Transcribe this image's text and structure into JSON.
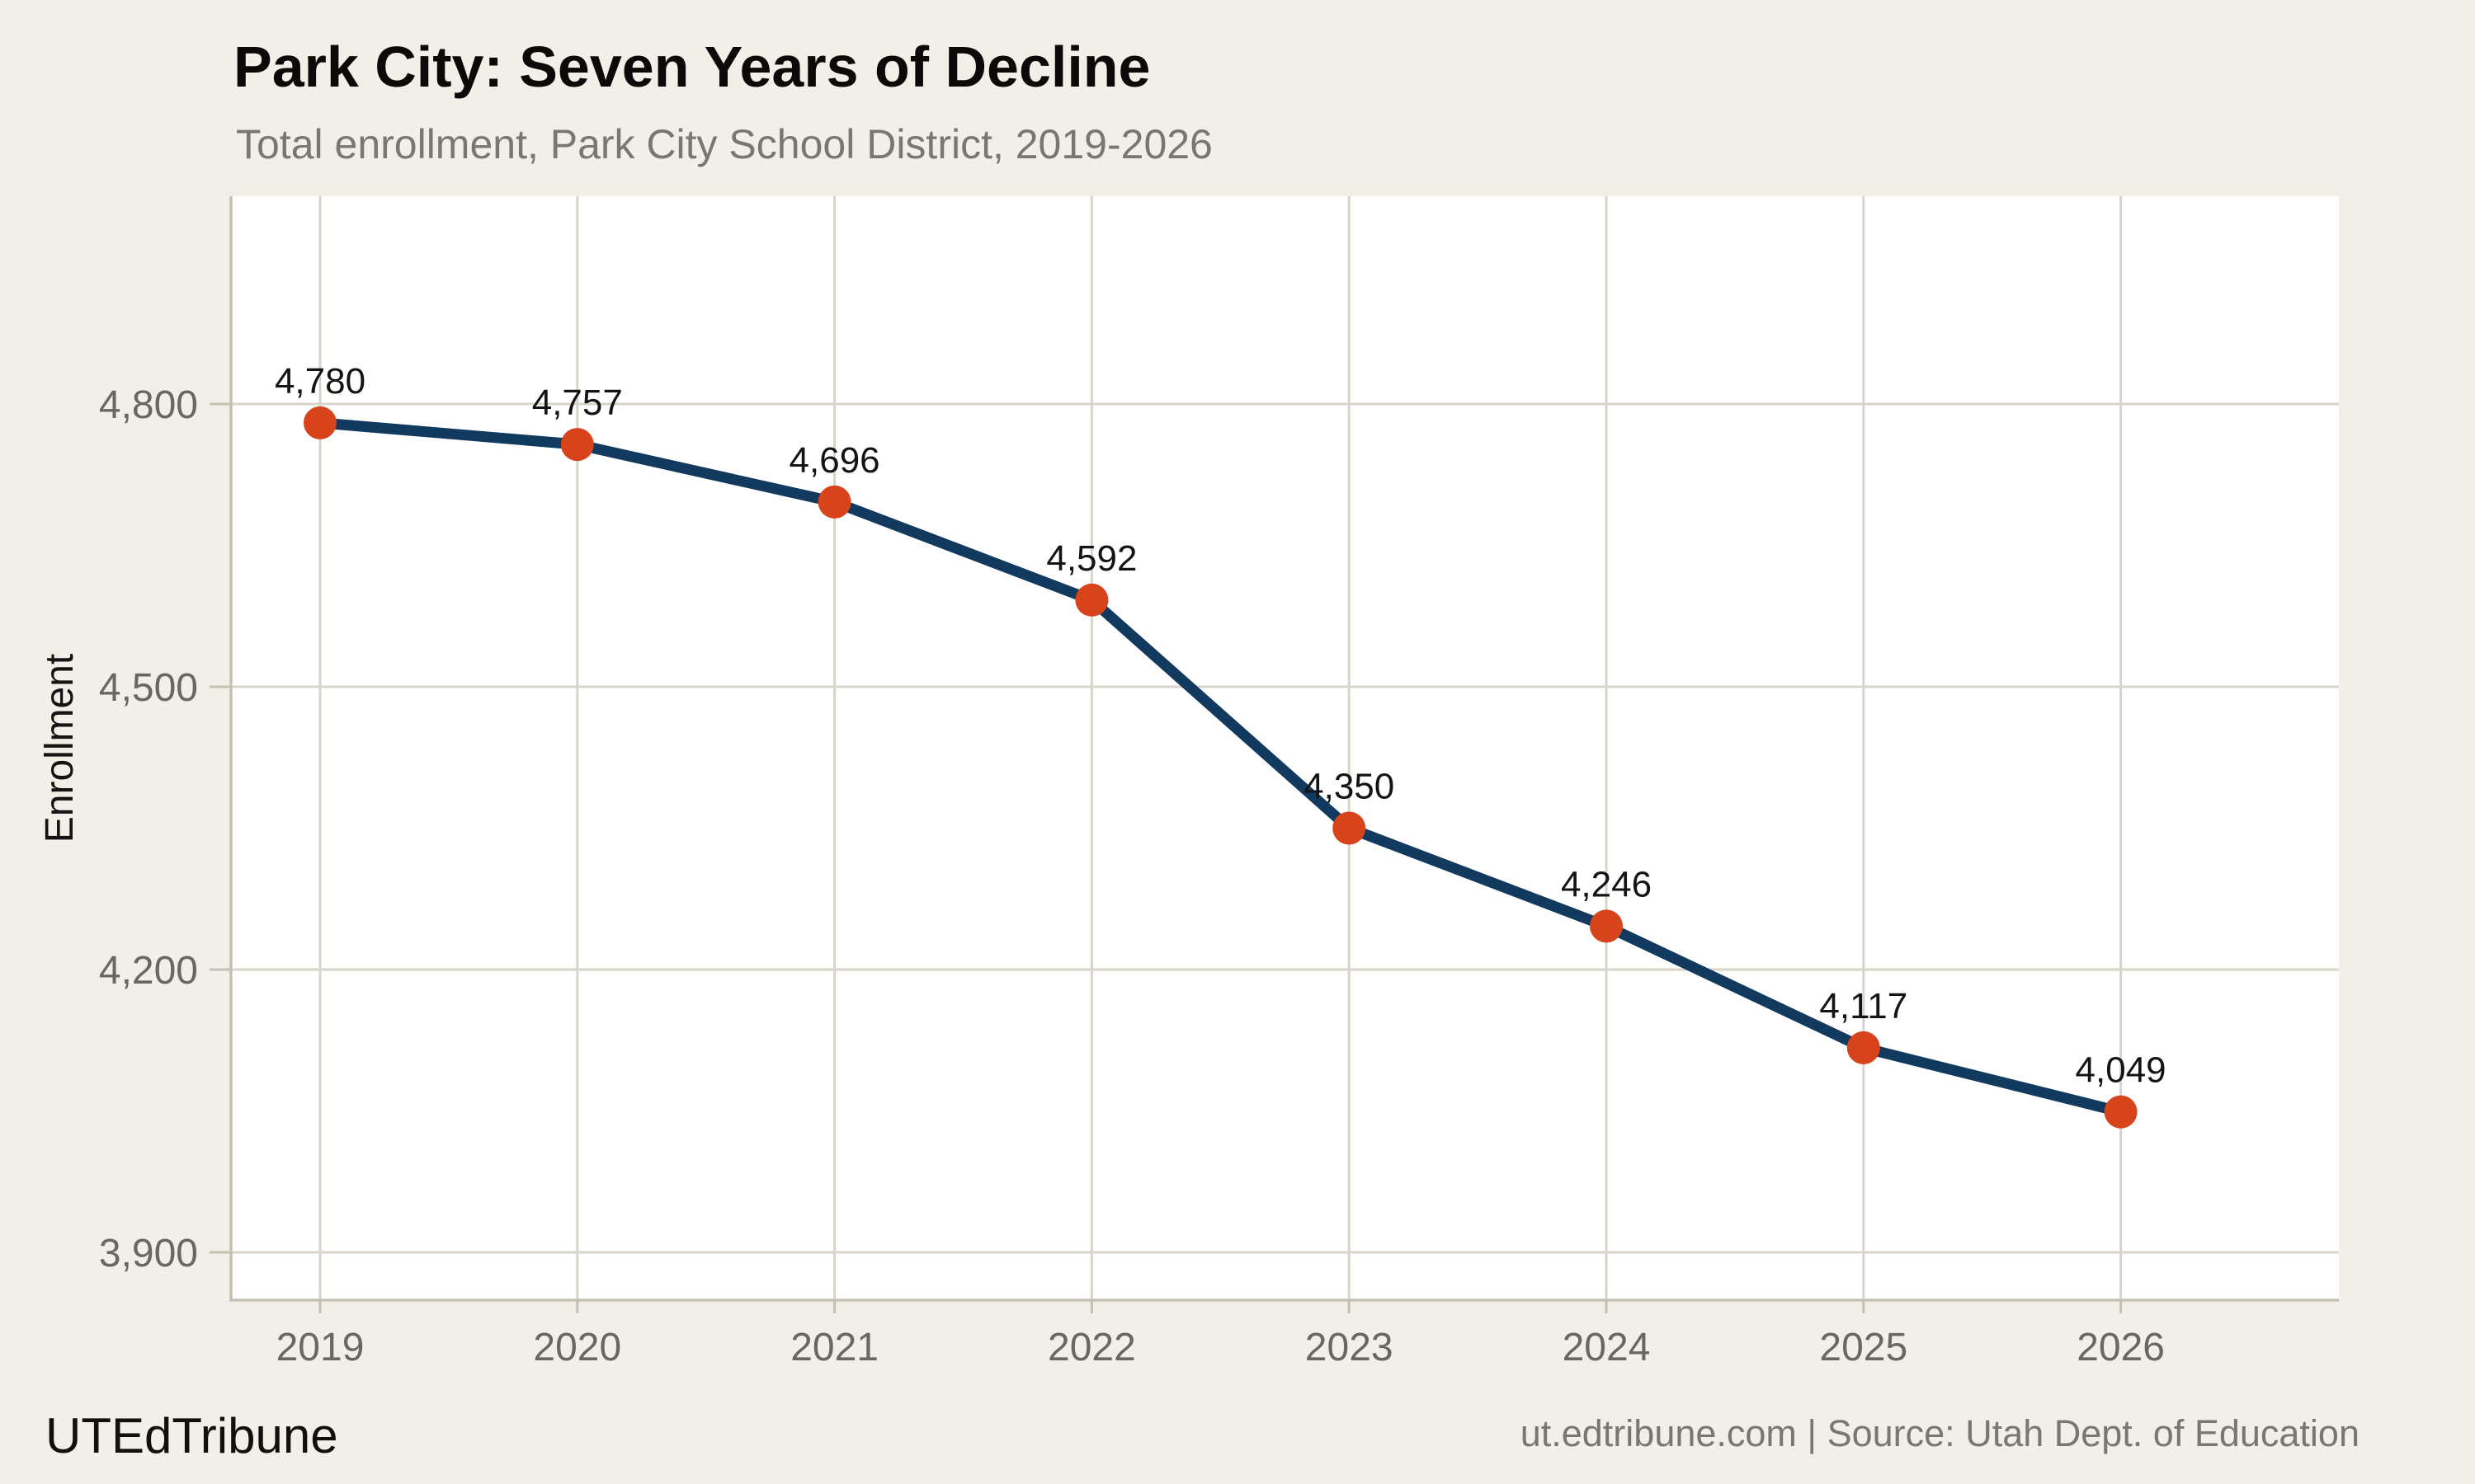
{
  "header": {
    "title": "Park City: Seven Years of Decline",
    "subtitle": "Total enrollment, Park City School District, 2019-2026"
  },
  "footer": {
    "brand": "UTEdTribune",
    "source": "ut.edtribune.com | Source: Utah Dept. of Education"
  },
  "chart_data": {
    "type": "line",
    "title": "Park City: Seven Years of Decline",
    "subtitle": "Total enrollment, Park City School District, 2019-2026",
    "x": [
      2019,
      2020,
      2021,
      2022,
      2023,
      2024,
      2025,
      2026
    ],
    "values": [
      4780,
      4757,
      4696,
      4592,
      4350,
      4246,
      4117,
      4049
    ],
    "point_labels": [
      "4,780",
      "4,757",
      "4,696",
      "4,592",
      "4,350",
      "4,246",
      "4,117",
      "4,049"
    ],
    "xlabel": "",
    "ylabel": "Enrollment",
    "yticks": [
      4800,
      4500,
      4200,
      3900
    ],
    "ytick_labels": [
      "4,800",
      "4,500",
      "4,200",
      "3,900"
    ],
    "ylim": [
      3849,
      5020
    ],
    "grid": true,
    "legend": "none",
    "colors": {
      "background": "#f2efe9",
      "panel": "#ffffff",
      "grid": "#d9d4cb",
      "axis": "#c6c0b4",
      "line": "#12395e",
      "marker": "#d7431a",
      "tick_text": "#6b665e",
      "title": "#0b0a08",
      "subtitle": "#7b766e",
      "data_label": "#141414",
      "axis_title": "#141414"
    }
  }
}
